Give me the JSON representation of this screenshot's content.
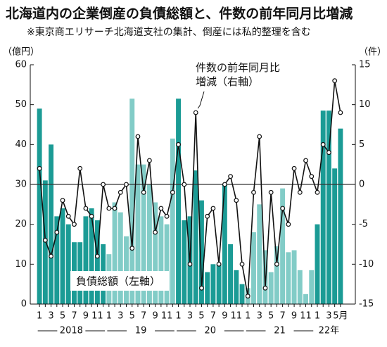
{
  "chart_data": {
    "type": "bar_line",
    "title": "北海道内の企業倒産の負債総額と、件数の前年同月比増減",
    "subtitle": "※東京商エリサーチ北海道支社の集計、倒産には私的整理を含む",
    "ylabel": "（億円）",
    "y2label": "（件）",
    "categories": [
      "1",
      null,
      "3",
      null,
      "5",
      null,
      "7",
      null,
      "9",
      null,
      "11",
      null,
      "1",
      null,
      "3",
      null,
      "5",
      null,
      "7",
      null,
      "9",
      null,
      "11",
      null,
      "1",
      null,
      "3",
      null,
      "5",
      null,
      "7",
      null,
      "9",
      null,
      "11",
      null,
      "1",
      null,
      "3",
      null,
      "5",
      null,
      "7",
      null,
      "9",
      null,
      "11",
      null,
      "1",
      null,
      "3",
      null,
      "5月"
    ],
    "x_groups": [
      "2018",
      "19",
      "20",
      "21",
      "22年"
    ],
    "series": [
      {
        "name": "負債総額（左軸）",
        "type": "bar",
        "colors": [
          "#1b9b95",
          "#82ccc7"
        ],
        "values": [
          49,
          31,
          40,
          22,
          24,
          20,
          15.5,
          15.5,
          22,
          24,
          21,
          15,
          12.5,
          25.5,
          23,
          17,
          51.5,
          35,
          35,
          30,
          25.5,
          22,
          20,
          41.5,
          51.5,
          21,
          22,
          33.5,
          26,
          8,
          10,
          10,
          30,
          15,
          8.5,
          5,
          4,
          18,
          25,
          13.5,
          8,
          14.5,
          29,
          13,
          13.5,
          8.5,
          2.5,
          8.5,
          20,
          48.5,
          48.5,
          34,
          44
        ]
      },
      {
        "name": "件数の前年同月比\n増減（右軸）",
        "type": "line",
        "axis": "y2",
        "color": "#111111",
        "values": [
          2,
          -7,
          -9,
          -6,
          -2,
          -4,
          -5,
          2,
          -3,
          -4,
          -9,
          0,
          -3,
          -3,
          -1,
          0,
          -8,
          6,
          -1,
          3,
          -6,
          -3,
          -4,
          -1,
          5,
          0,
          -10,
          9,
          -13,
          -4,
          -3,
          -10,
          0,
          1,
          -2,
          -10,
          -14,
          -1,
          6,
          -13,
          -1,
          -10,
          -3,
          -5,
          2,
          -1,
          3,
          1,
          -1,
          5,
          4,
          13,
          9
        ]
      }
    ],
    "ylim": [
      0,
      60
    ],
    "yticks": [
      0,
      10,
      20,
      30,
      40,
      50,
      60
    ],
    "y2lim": [
      -15,
      15
    ],
    "y2ticks": [
      -15,
      -10,
      -5,
      0,
      5,
      10,
      15
    ]
  }
}
